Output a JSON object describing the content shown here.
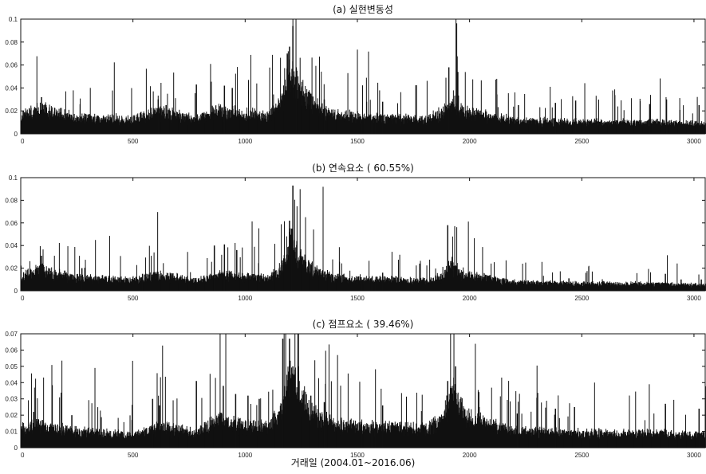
{
  "figure": {
    "xlabel": "거래일 (2004.01~2016.06)"
  },
  "chart_data": [
    {
      "type": "bar",
      "title": "(a) 실현변동성",
      "x_range": [
        0,
        3050
      ],
      "ylim": [
        0,
        0.1
      ],
      "x_ticks": [
        0,
        500,
        1000,
        1500,
        2000,
        2500,
        3000
      ],
      "y_ticks": [
        0,
        0.02,
        0.04,
        0.06,
        0.08,
        0.1
      ],
      "x_tick_labels": [
        "0",
        "500",
        "1000",
        "1500",
        "2000",
        "2500",
        "3000"
      ],
      "y_tick_labels": [
        "0",
        "0.02",
        "0.04",
        "0.06",
        "0.08",
        "0.1"
      ],
      "baseline_profile": [
        [
          0,
          0.012
        ],
        [
          80,
          0.018
        ],
        [
          120,
          0.016
        ],
        [
          250,
          0.011
        ],
        [
          500,
          0.01
        ],
        [
          620,
          0.015
        ],
        [
          780,
          0.01
        ],
        [
          880,
          0.016
        ],
        [
          1000,
          0.014
        ],
        [
          1100,
          0.012
        ],
        [
          1160,
          0.022
        ],
        [
          1190,
          0.048
        ],
        [
          1230,
          0.034
        ],
        [
          1300,
          0.02
        ],
        [
          1400,
          0.013
        ],
        [
          1600,
          0.011
        ],
        [
          1800,
          0.01
        ],
        [
          1880,
          0.015
        ],
        [
          1920,
          0.024
        ],
        [
          1980,
          0.016
        ],
        [
          2200,
          0.009
        ],
        [
          2500,
          0.008
        ],
        [
          2800,
          0.008
        ],
        [
          3050,
          0.007
        ]
      ],
      "spikes": [
        [
          90,
          0.032
        ],
        [
          610,
          0.03
        ],
        [
          645,
          0.025
        ],
        [
          780,
          0.043
        ],
        [
          905,
          0.042
        ],
        [
          940,
          0.04
        ],
        [
          1185,
          0.07
        ],
        [
          1195,
          0.076
        ],
        [
          1210,
          0.094
        ],
        [
          1225,
          0.058
        ],
        [
          1290,
          0.035
        ],
        [
          1350,
          0.03
        ],
        [
          1610,
          0.028
        ],
        [
          1905,
          0.058
        ],
        [
          1945,
          0.054
        ],
        [
          2215,
          0.025
        ],
        [
          2380,
          0.027
        ],
        [
          2470,
          0.029
        ],
        [
          2800,
          0.026
        ],
        [
          2875,
          0.03
        ],
        [
          3020,
          0.025
        ]
      ]
    },
    {
      "type": "bar",
      "title": "(b) 연속요소 ( 60.55%)",
      "x_range": [
        0,
        3050
      ],
      "ylim": [
        0,
        0.1
      ],
      "x_ticks": [
        0,
        500,
        1000,
        1500,
        2000,
        2500,
        3000
      ],
      "y_ticks": [
        0,
        0.02,
        0.04,
        0.06,
        0.08,
        0.1
      ],
      "x_tick_labels": [
        "0",
        "500",
        "1000",
        "1500",
        "2000",
        "2500",
        "3000"
      ],
      "y_tick_labels": [
        "0",
        "0.02",
        "0.04",
        "0.06",
        "0.08",
        "0.1"
      ],
      "baseline_profile": [
        [
          0,
          0.01
        ],
        [
          80,
          0.015
        ],
        [
          120,
          0.013
        ],
        [
          250,
          0.009
        ],
        [
          500,
          0.008
        ],
        [
          620,
          0.011
        ],
        [
          780,
          0.007
        ],
        [
          880,
          0.011
        ],
        [
          1000,
          0.01
        ],
        [
          1100,
          0.009
        ],
        [
          1160,
          0.015
        ],
        [
          1195,
          0.035
        ],
        [
          1230,
          0.024
        ],
        [
          1300,
          0.015
        ],
        [
          1400,
          0.009
        ],
        [
          1600,
          0.008
        ],
        [
          1800,
          0.007
        ],
        [
          1880,
          0.01
        ],
        [
          1910,
          0.018
        ],
        [
          1980,
          0.011
        ],
        [
          2200,
          0.006
        ],
        [
          2500,
          0.005
        ],
        [
          2800,
          0.005
        ],
        [
          3050,
          0.004
        ]
      ],
      "spikes": [
        [
          90,
          0.031
        ],
        [
          270,
          0.02
        ],
        [
          540,
          0.015
        ],
        [
          860,
          0.04
        ],
        [
          905,
          0.041
        ],
        [
          960,
          0.036
        ],
        [
          1195,
          0.062
        ],
        [
          1205,
          0.055
        ],
        [
          1210,
          0.093
        ],
        [
          1228,
          0.044
        ],
        [
          1280,
          0.027
        ],
        [
          1610,
          0.016
        ],
        [
          1900,
          0.058
        ],
        [
          1920,
          0.03
        ],
        [
          2440,
          0.011
        ],
        [
          2870,
          0.015
        ],
        [
          2940,
          0.01
        ],
        [
          3030,
          0.01
        ]
      ]
    },
    {
      "type": "bar",
      "title": "(c) 점프요소 ( 39.46%)",
      "x_range": [
        0,
        3050
      ],
      "ylim": [
        0,
        0.07
      ],
      "x_ticks": [
        0,
        500,
        1000,
        1500,
        2000,
        2500,
        3000
      ],
      "y_ticks": [
        0,
        0.01,
        0.02,
        0.03,
        0.04,
        0.05,
        0.06,
        0.07
      ],
      "x_tick_labels": [
        "0",
        "500",
        "1000",
        "1500",
        "2000",
        "2500",
        "3000"
      ],
      "y_tick_labels": [
        "0",
        "0.01",
        "0.02",
        "0.03",
        "0.04",
        "0.05",
        "0.06",
        "0.07"
      ],
      "baseline_profile": [
        [
          0,
          0.009
        ],
        [
          80,
          0.012
        ],
        [
          120,
          0.01
        ],
        [
          250,
          0.008
        ],
        [
          500,
          0.006
        ],
        [
          620,
          0.011
        ],
        [
          780,
          0.007
        ],
        [
          880,
          0.014
        ],
        [
          1000,
          0.011
        ],
        [
          1100,
          0.01
        ],
        [
          1160,
          0.018
        ],
        [
          1195,
          0.038
        ],
        [
          1230,
          0.028
        ],
        [
          1300,
          0.016
        ],
        [
          1400,
          0.011
        ],
        [
          1600,
          0.01
        ],
        [
          1800,
          0.009
        ],
        [
          1880,
          0.014
        ],
        [
          1920,
          0.028
        ],
        [
          1980,
          0.015
        ],
        [
          2200,
          0.008
        ],
        [
          2500,
          0.007
        ],
        [
          2800,
          0.007
        ],
        [
          3050,
          0.006
        ]
      ],
      "spikes": [
        [
          55,
          0.022
        ],
        [
          225,
          0.02
        ],
        [
          585,
          0.03
        ],
        [
          615,
          0.026
        ],
        [
          780,
          0.041
        ],
        [
          900,
          0.038
        ],
        [
          955,
          0.033
        ],
        [
          1010,
          0.032
        ],
        [
          1060,
          0.03
        ],
        [
          1165,
          0.067
        ],
        [
          1195,
          0.067
        ],
        [
          1210,
          0.05
        ],
        [
          1235,
          0.05
        ],
        [
          1290,
          0.032
        ],
        [
          1350,
          0.028
        ],
        [
          1610,
          0.026
        ],
        [
          1900,
          0.041
        ],
        [
          1935,
          0.05
        ],
        [
          2040,
          0.025
        ],
        [
          2210,
          0.021
        ],
        [
          2380,
          0.024
        ],
        [
          2465,
          0.025
        ],
        [
          2870,
          0.027
        ],
        [
          3020,
          0.024
        ]
      ]
    }
  ]
}
